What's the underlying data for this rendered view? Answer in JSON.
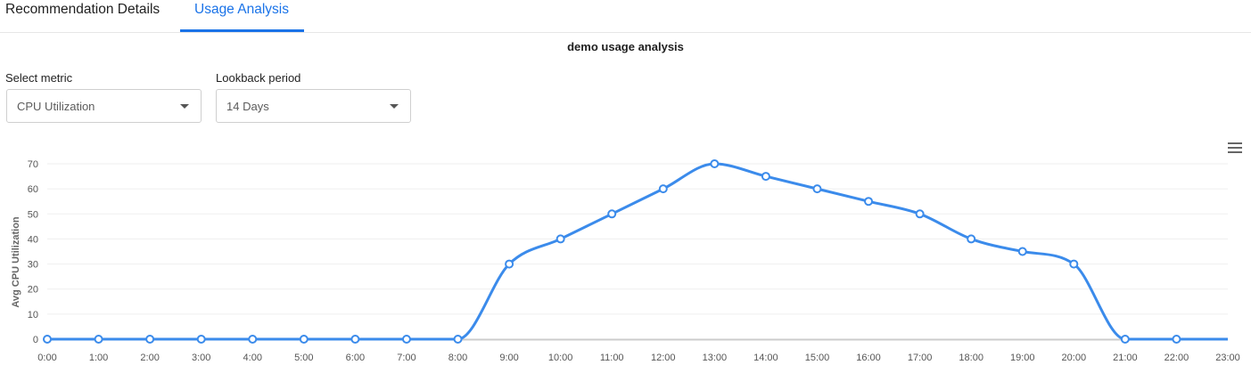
{
  "tabs": [
    {
      "label": "Recommendation Details",
      "active": false
    },
    {
      "label": "Usage Analysis",
      "active": true
    }
  ],
  "title": "demo usage analysis",
  "metric_select": {
    "label": "Select metric",
    "value": "CPU Utilization"
  },
  "lookback_select": {
    "label": "Lookback period",
    "value": "14 Days"
  },
  "menu_icon": "hamburger-menu-icon",
  "colors": {
    "accent": "#1a73e8",
    "series": "#3b8beb"
  },
  "chart_data": {
    "type": "line",
    "title": "demo usage analysis",
    "xlabel": "",
    "ylabel": "Avg CPU Utilization",
    "ylim": [
      0,
      70
    ],
    "yticks": [
      0,
      10,
      20,
      30,
      40,
      50,
      60,
      70
    ],
    "categories": [
      "0:00",
      "1:00",
      "2:00",
      "3:00",
      "4:00",
      "5:00",
      "6:00",
      "7:00",
      "8:00",
      "9:00",
      "10:00",
      "11:00",
      "12:00",
      "13:00",
      "14:00",
      "15:00",
      "16:00",
      "17:00",
      "18:00",
      "19:00",
      "20:00",
      "21:00",
      "22:00",
      "23:00"
    ],
    "values": [
      0,
      0,
      0,
      0,
      0,
      0,
      0,
      0,
      0,
      30,
      40,
      50,
      60,
      70,
      65,
      60,
      55,
      50,
      40,
      35,
      30,
      0,
      0,
      0
    ],
    "grid": true,
    "smooth": true
  }
}
